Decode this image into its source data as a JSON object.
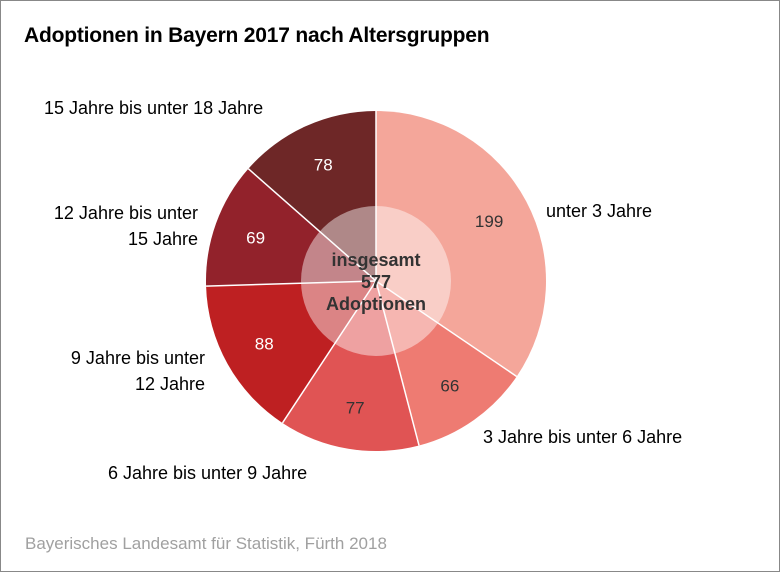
{
  "chart_data": {
    "type": "pie",
    "variant": "donut-overlay",
    "title": "Adoptionen in Bayern 2017 nach Altersgruppen",
    "source": "Bayerisches Landesamt für Statistik, Fürth 2018",
    "center_label": [
      "insgesamt",
      "577",
      "Adoptionen"
    ],
    "total": 577,
    "start": "top, clockwise",
    "slices": [
      {
        "label": [
          "unter 3 Jahre"
        ],
        "value": 199,
        "color": "#f4a69a",
        "value_color": "#333333"
      },
      {
        "label": [
          "3 Jahre bis unter 6 Jahre"
        ],
        "value": 66,
        "color": "#ee7b72",
        "value_color": "#333333"
      },
      {
        "label": [
          "6 Jahre bis unter 9 Jahre"
        ],
        "value": 77,
        "color": "#e05454",
        "value_color": "#333333"
      },
      {
        "label": [
          "9 Jahre bis unter",
          "12 Jahre"
        ],
        "value": 88,
        "color": "#be2022",
        "value_color": "#ffffff"
      },
      {
        "label": [
          "12 Jahre bis unter",
          "15 Jahre"
        ],
        "value": 69,
        "color": "#92222b",
        "value_color": "#ffffff"
      },
      {
        "label": [
          "15 Jahre bis unter 18 Jahre"
        ],
        "value": 78,
        "color": "#6e2727",
        "value_color": "#ffffff"
      }
    ]
  }
}
